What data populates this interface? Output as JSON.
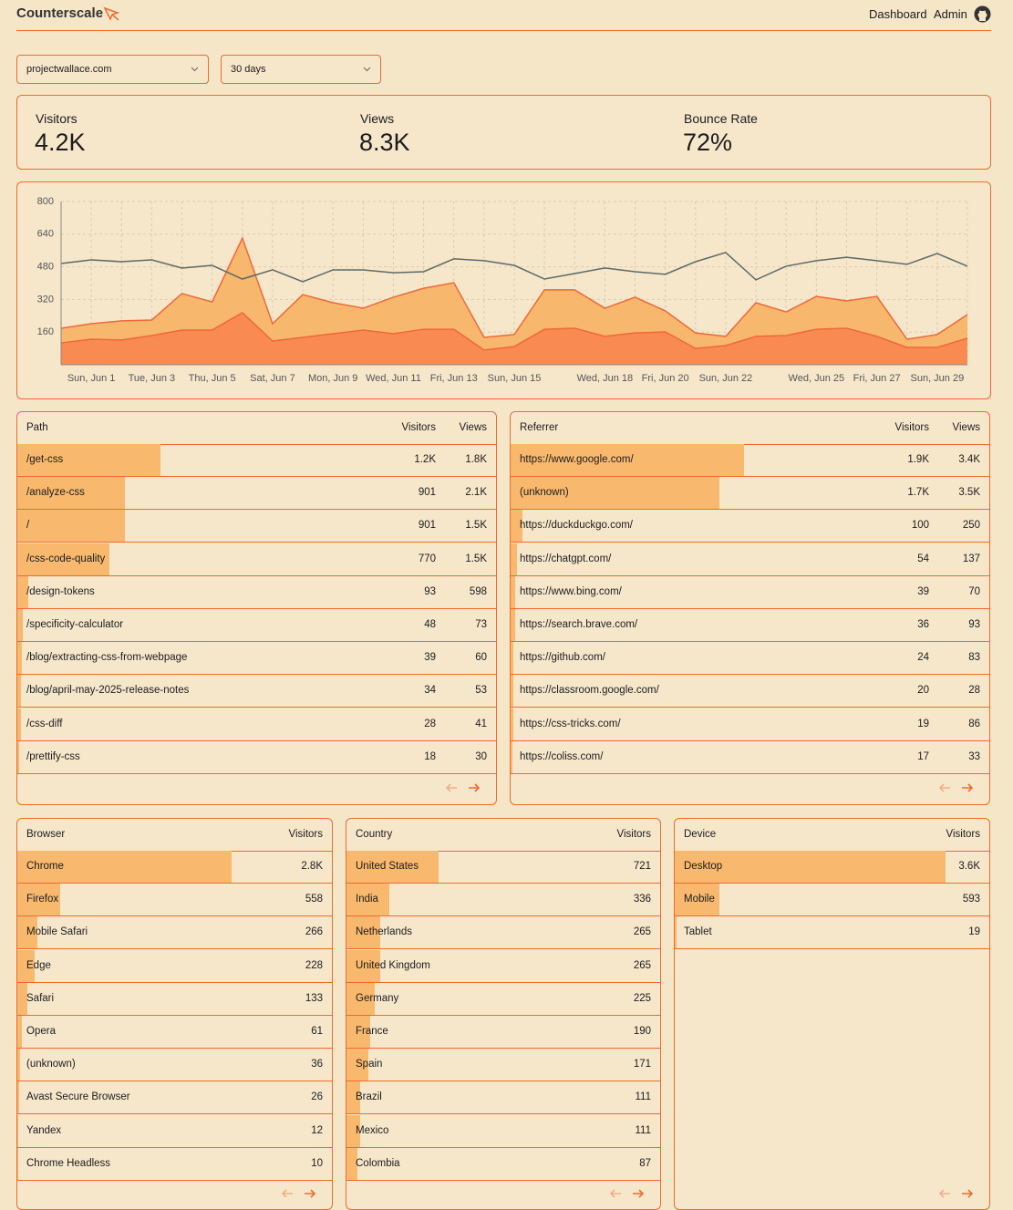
{
  "header": {
    "logo": "Counterscale",
    "nav": [
      "Dashboard",
      "Admin"
    ]
  },
  "filters": {
    "site": "projectwallace.com",
    "range": "30 days"
  },
  "stats": [
    {
      "label": "Visitors",
      "value": "4.2K"
    },
    {
      "label": "Views",
      "value": "8.3K"
    },
    {
      "label": "Bounce Rate",
      "value": "72%"
    }
  ],
  "chart_data": {
    "type": "area",
    "categories": [
      null,
      "Sun, Jun 1",
      null,
      "Tue, Jun 3",
      null,
      "Thu, Jun 5",
      null,
      "Sat, Jun 7",
      null,
      "Mon, Jun 9",
      null,
      "Wed, Jun 11",
      null,
      "Fri, Jun 13",
      null,
      "Sun, Jun 15",
      null,
      null,
      "Wed, Jun 18",
      null,
      "Fri, Jun 20",
      null,
      "Sun, Jun 22",
      null,
      null,
      "Wed, Jun 25",
      null,
      "Fri, Jun 27",
      null,
      "Sun, Jun 29",
      null
    ],
    "series": [
      {
        "type": "area",
        "color": "#f0683a",
        "fill": "#f7b76c",
        "values": [
          179,
          201,
          215,
          219,
          349,
          308,
          621,
          201,
          344,
          304,
          277,
          331,
          375,
          402,
          134,
          148,
          367,
          367,
          277,
          331,
          264,
          156,
          139,
          304,
          259,
          335,
          313,
          335,
          125,
          148,
          246
        ]
      },
      {
        "type": "area",
        "color": "#f0683a",
        "fill": "#f98a52",
        "values": [
          107,
          125,
          121,
          143,
          170,
          170,
          255,
          116,
          134,
          152,
          170,
          152,
          174,
          174,
          72,
          89,
          174,
          179,
          139,
          156,
          161,
          80,
          94,
          139,
          143,
          174,
          179,
          139,
          85,
          85,
          130
        ]
      },
      {
        "type": "line",
        "color": "#5b6a66",
        "values": [
          496,
          514,
          505,
          514,
          474,
          487,
          420,
          465,
          407,
          465,
          465,
          451,
          456,
          519,
          510,
          487,
          420,
          447,
          474,
          456,
          443,
          505,
          550,
          416,
          483,
          510,
          527,
          510,
          492,
          545,
          483
        ]
      }
    ],
    "ylim": [
      0,
      800
    ],
    "yticks": [
      160,
      320,
      480,
      640,
      800
    ],
    "grid": true
  },
  "tables": [
    {
      "columns": [
        "Path",
        "Visitors",
        "Views"
      ],
      "rows": [
        [
          "/get-css",
          {
            "value": 1200,
            "label": "1.2K"
          },
          {
            "value": 1800,
            "label": "1.8K"
          }
        ],
        [
          "/analyze-css",
          901,
          {
            "value": 2100,
            "label": "2.1K"
          }
        ],
        [
          "/",
          901,
          {
            "value": 1500,
            "label": "1.5K"
          }
        ],
        [
          "/css-code-quality",
          770,
          {
            "value": 1500,
            "label": "1.5K"
          }
        ],
        [
          "/design-tokens",
          93,
          598
        ],
        [
          "/specificity-calculator",
          48,
          73
        ],
        [
          "/blog/extracting-css-from-webpage",
          39,
          60
        ],
        [
          "/blog/april-may-2025-release-notes",
          34,
          53
        ],
        [
          "/css-diff",
          28,
          41
        ],
        [
          "/prettify-css",
          18,
          30
        ]
      ]
    },
    {
      "columns": [
        "Referrer",
        "Visitors",
        "Views"
      ],
      "rows": [
        [
          "https://www.google.com/",
          {
            "value": 1900,
            "label": "1.9K"
          },
          {
            "value": 3400,
            "label": "3.4K"
          }
        ],
        [
          "(unknown)",
          {
            "value": 1700,
            "label": "1.7K"
          },
          {
            "value": 3500,
            "label": "3.5K"
          }
        ],
        [
          "https://duckduckgo.com/",
          100,
          250
        ],
        [
          "https://chatgpt.com/",
          54,
          137
        ],
        [
          "https://www.bing.com/",
          39,
          70
        ],
        [
          "https://search.brave.com/",
          36,
          93
        ],
        [
          "https://github.com/",
          24,
          83
        ],
        [
          "https://classroom.google.com/",
          20,
          28
        ],
        [
          "https://css-tricks.com/",
          19,
          86
        ],
        [
          "https://coliss.com/",
          17,
          33
        ]
      ]
    },
    {
      "columns": [
        "Browser",
        "Visitors"
      ],
      "rows": [
        [
          "Chrome",
          {
            "value": 2800,
            "label": "2.8K"
          }
        ],
        [
          "Firefox",
          558
        ],
        [
          "Mobile Safari",
          266
        ],
        [
          "Edge",
          228
        ],
        [
          "Safari",
          133
        ],
        [
          "Opera",
          61
        ],
        [
          "(unknown)",
          36
        ],
        [
          "Avast Secure Browser",
          26
        ],
        [
          "Yandex",
          12
        ],
        [
          "Chrome Headless",
          10
        ]
      ]
    },
    {
      "columns": [
        "Country",
        "Visitors"
      ],
      "rows": [
        [
          "United States",
          721
        ],
        [
          "India",
          336
        ],
        [
          "Netherlands",
          265
        ],
        [
          "United Kingdom",
          265
        ],
        [
          "Germany",
          225
        ],
        [
          "France",
          190
        ],
        [
          "Spain",
          171
        ],
        [
          "Brazil",
          111
        ],
        [
          "Mexico",
          111
        ],
        [
          "Colombia",
          87
        ]
      ]
    },
    {
      "columns": [
        "Device",
        "Visitors"
      ],
      "rows": [
        [
          "Desktop",
          {
            "value": 3600,
            "label": "3.6K"
          }
        ],
        [
          "Mobile",
          593
        ],
        [
          "Tablet",
          19
        ]
      ]
    }
  ]
}
